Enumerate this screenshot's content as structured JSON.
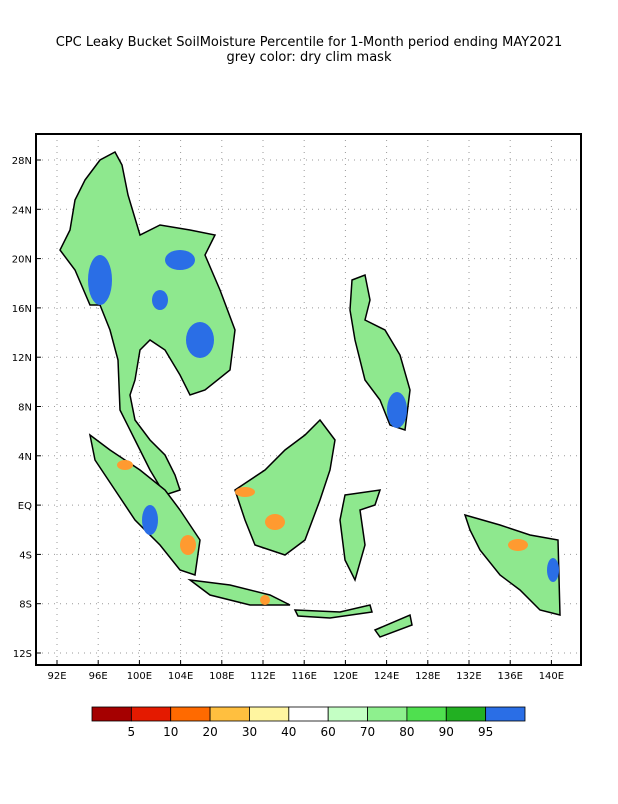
{
  "title": [
    "CPC Leaky Bucket SoilMoisture Percentile for 1-Month period ending  MAY2021",
    "grey color: dry clim mask"
  ],
  "map": {
    "lon_labels": [
      "92E",
      "96E",
      "100E",
      "104E",
      "108E",
      "112E",
      "116E",
      "120E",
      "124E",
      "128E",
      "132E",
      "136E",
      "140E"
    ],
    "lat_labels": [
      "28N",
      "24N",
      "20N",
      "16N",
      "12N",
      "8N",
      "4N",
      "EQ",
      "4S",
      "8S",
      "12S"
    ]
  },
  "colorbar": {
    "colors": [
      "#a50000",
      "#e41a00",
      "#ff6a00",
      "#ffbf3f",
      "#fff5a0",
      "#ffffff",
      "#c4ffc4",
      "#8ef08e",
      "#4fe04f",
      "#22b022",
      "#2a6ee6"
    ],
    "labels": [
      5,
      10,
      20,
      30,
      40,
      60,
      70,
      80,
      90,
      95
    ]
  }
}
